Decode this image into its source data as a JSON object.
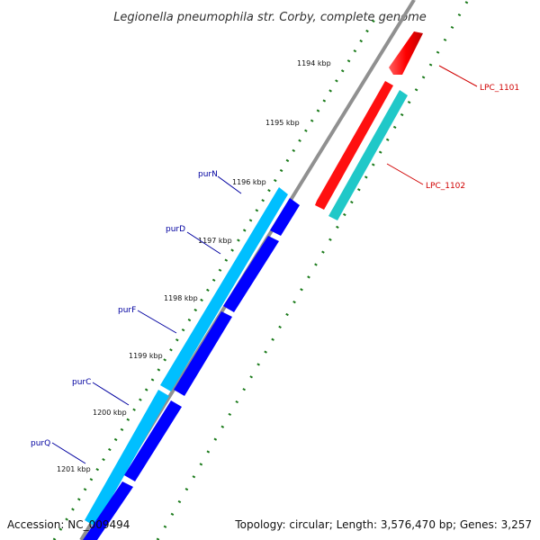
{
  "title": "Legionella pneumophila str. Corby, complete genome",
  "footer": {
    "accession": "Accession: NC_009494",
    "summary": "Topology: circular; Length: 3,576,470 bp; Genes: 3,257"
  },
  "kbp_labels": [
    "1194 kbp",
    "1195 kbp",
    "1196 kbp",
    "1197 kbp",
    "1198 kbp",
    "1199 kbp",
    "1200 kbp",
    "1201 kbp"
  ],
  "genes_forward": [
    {
      "name": "LPC_1101",
      "color": "#ff0000"
    },
    {
      "name": "LPC_1102",
      "color": "#ff0000"
    }
  ],
  "genes_reverse": [
    {
      "name": "purN",
      "color": "#00bfff"
    },
    {
      "name": "purD",
      "color": "#0000ff"
    },
    {
      "name": "purF",
      "color": "#00bfff"
    },
    {
      "name": "purC",
      "color": "#0000ff"
    },
    {
      "name": "purQ",
      "color": "#0000ff"
    }
  ],
  "colors": {
    "backbone": "#909090",
    "tick_marks": "#1a7a1a",
    "gene_red": "#ff0000",
    "gene_cyan": "#20c8c8",
    "gene_lightblue": "#00bfff",
    "gene_blue": "#0000ff",
    "label_blue": "#0000a0",
    "label_red": "#d00000"
  }
}
